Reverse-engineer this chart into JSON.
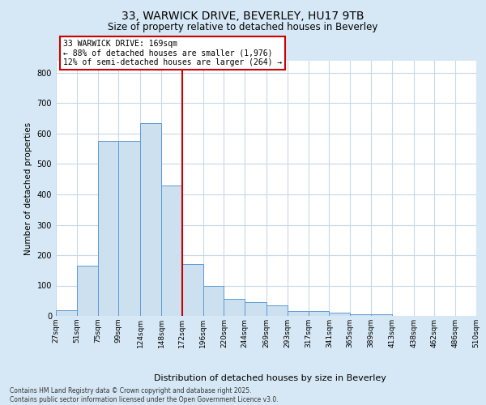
{
  "title1": "33, WARWICK DRIVE, BEVERLEY, HU17 9TB",
  "title2": "Size of property relative to detached houses in Beverley",
  "xlabel": "Distribution of detached houses by size in Beverley",
  "ylabel": "Number of detached properties",
  "bin_edges": [
    27,
    51,
    75,
    99,
    124,
    148,
    172,
    196,
    220,
    244,
    269,
    293,
    317,
    341,
    365,
    389,
    413,
    438,
    462,
    486,
    510
  ],
  "bar_heights": [
    20,
    165,
    575,
    575,
    635,
    430,
    170,
    100,
    55,
    45,
    35,
    15,
    15,
    10,
    5,
    5,
    0,
    0,
    0,
    0,
    5
  ],
  "bar_color": "#cce0f0",
  "bar_edge_color": "#5b9bd5",
  "vline_x": 172,
  "vline_color": "#cc0000",
  "annotation_text": "33 WARWICK DRIVE: 169sqm\n← 88% of detached houses are smaller (1,976)\n12% of semi-detached houses are larger (264) →",
  "annotation_box_color": "#ffffff",
  "annotation_box_edge": "#cc0000",
  "figure_bg_color": "#d6e8f5",
  "plot_bg_color": "#ffffff",
  "footer_text": "Contains HM Land Registry data © Crown copyright and database right 2025.\nContains public sector information licensed under the Open Government Licence v3.0.",
  "ylim": [
    0,
    840
  ],
  "yticks": [
    0,
    100,
    200,
    300,
    400,
    500,
    600,
    700,
    800
  ],
  "grid_color": "#c8d8e8",
  "title1_fontsize": 10,
  "title2_fontsize": 8.5,
  "ylabel_fontsize": 7.5,
  "xlabel_fontsize": 8.0,
  "tick_fontsize": 7,
  "xtick_fontsize": 6.5,
  "annot_fontsize": 7,
  "footer_fontsize": 5.5
}
